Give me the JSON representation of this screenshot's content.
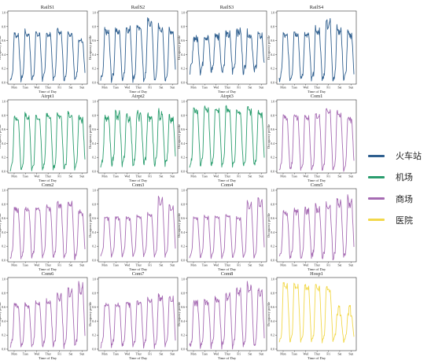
{
  "chart_data": {
    "type": "line",
    "panel_kind": "small-multiples-grid",
    "grid": {
      "rows": 4,
      "cols": 4
    },
    "xlabel": "Time of Day",
    "ylabel": "Occupancy profile",
    "x_ticks": [
      "Mon",
      "Tues",
      "Wed",
      "Thur",
      "Fri",
      "Sat",
      "Sun"
    ],
    "y_ticks": [
      "0.0",
      "0.2",
      "0.4",
      "0.6",
      "0.8",
      "1.0"
    ],
    "ylim": [
      0,
      1
    ],
    "legend": [
      {
        "name": "火车站",
        "color": "#2f5f8f"
      },
      {
        "name": "机场",
        "color": "#2a9d6e"
      },
      {
        "name": "商场",
        "color": "#a66bb3"
      },
      {
        "name": "医院",
        "color": "#f2d84a"
      }
    ],
    "panels": [
      {
        "title": "RailS1",
        "group": 0,
        "minv": 0.03,
        "peaks": [
          0.72,
          0.74,
          0.73,
          0.73,
          0.78,
          0.75,
          0.62
        ],
        "midday": 0.58,
        "noise": 0.03
      },
      {
        "title": "RailS2",
        "group": 0,
        "minv": 0.03,
        "peaks": [
          0.75,
          0.78,
          0.8,
          0.82,
          0.92,
          0.82,
          0.78
        ],
        "midday": 0.66,
        "noise": 0.04
      },
      {
        "title": "RailS3",
        "group": 0,
        "minv": 0.15,
        "peaks": [
          0.65,
          0.68,
          0.7,
          0.72,
          0.78,
          0.72,
          0.7
        ],
        "midday": 0.6,
        "noise": 0.05
      },
      {
        "title": "RailS4",
        "group": 0,
        "minv": 0.03,
        "peaks": [
          0.7,
          0.75,
          0.72,
          0.78,
          0.92,
          0.8,
          0.72
        ],
        "midday": 0.6,
        "noise": 0.04
      },
      {
        "title": "Airpt1",
        "group": 1,
        "minv": 0.02,
        "peaks": [
          0.78,
          0.82,
          0.8,
          0.82,
          0.83,
          0.84,
          0.78
        ],
        "midday": 0.7,
        "noise": 0.03
      },
      {
        "title": "Airpt2",
        "group": 1,
        "minv": 0.1,
        "peaks": [
          0.8,
          0.85,
          0.82,
          0.86,
          0.82,
          0.88,
          0.78
        ],
        "midday": 0.62,
        "noise": 0.05
      },
      {
        "title": "Airpt3",
        "group": 1,
        "minv": 0.08,
        "peaks": [
          0.9,
          0.92,
          0.9,
          0.92,
          0.88,
          0.9,
          0.85
        ],
        "midday": 0.8,
        "noise": 0.03
      },
      {
        "title": "Com1",
        "group": 2,
        "minv": 0.02,
        "peaks": [
          0.8,
          0.82,
          0.8,
          0.82,
          0.9,
          0.85,
          0.78
        ],
        "midday": 0.72,
        "noise": 0.03
      },
      {
        "title": "Com2",
        "group": 2,
        "minv": 0.03,
        "peaks": [
          0.76,
          0.76,
          0.76,
          0.78,
          0.83,
          0.85,
          0.7
        ],
        "midday": 0.68,
        "noise": 0.03
      },
      {
        "title": "Com3",
        "group": 2,
        "minv": 0.05,
        "peaks": [
          0.62,
          0.62,
          0.62,
          0.64,
          0.68,
          0.92,
          0.8
        ],
        "midday": 0.6,
        "noise": 0.01
      },
      {
        "title": "Com4",
        "group": 2,
        "minv": 0.03,
        "peaks": [
          0.62,
          0.64,
          0.64,
          0.66,
          0.62,
          0.85,
          0.9
        ],
        "midday": 0.58,
        "noise": 0.01
      },
      {
        "title": "Com5",
        "group": 2,
        "minv": 0.03,
        "peaks": [
          0.7,
          0.72,
          0.74,
          0.78,
          0.8,
          0.88,
          0.9
        ],
        "midday": 0.62,
        "noise": 0.04
      },
      {
        "title": "Com6",
        "group": 2,
        "minv": 0.03,
        "peaks": [
          0.65,
          0.65,
          0.68,
          0.7,
          0.8,
          0.9,
          0.95
        ],
        "midday": 0.58,
        "noise": 0.03
      },
      {
        "title": "Com7",
        "group": 2,
        "minv": 0.03,
        "peaks": [
          0.65,
          0.66,
          0.67,
          0.7,
          0.72,
          0.78,
          0.76
        ],
        "midday": 0.6,
        "noise": 0.03
      },
      {
        "title": "Com8",
        "group": 2,
        "minv": 0.03,
        "peaks": [
          0.68,
          0.7,
          0.75,
          0.8,
          0.88,
          0.95,
          0.88
        ],
        "midday": 0.62,
        "noise": 0.04
      },
      {
        "title": "Hosp1",
        "group": 3,
        "minv": 0.1,
        "peaks": [
          0.95,
          0.94,
          0.92,
          0.92,
          0.88,
          0.5,
          0.5
        ],
        "midday": 0.78,
        "noise": 0.02
      }
    ]
  }
}
